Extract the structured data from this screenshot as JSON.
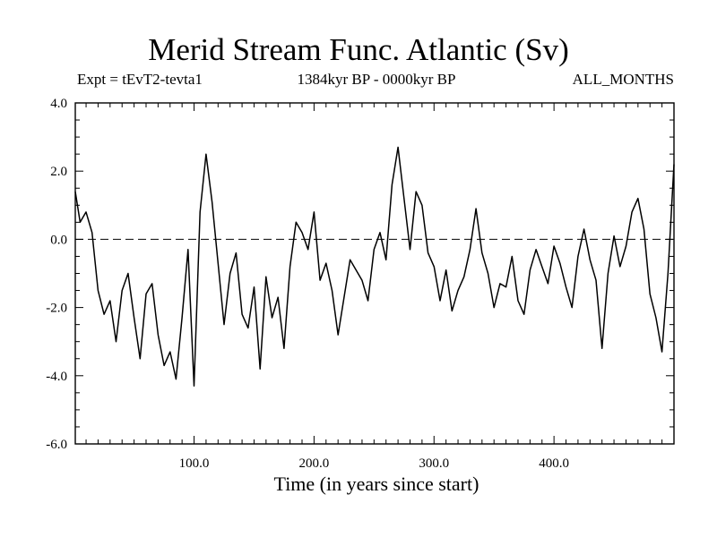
{
  "chart_data": {
    "type": "line",
    "title": "Merid Stream Func. Atlantic (Sv)",
    "subtitle_left": "Expt = tEvT2-tevta1",
    "subtitle_center": "1384kyr BP - 0000kyr BP",
    "subtitle_right": "ALL_MONTHS",
    "xlabel": "Time (in years since start)",
    "ylabel": "",
    "xlim": [
      1,
      500
    ],
    "ylim": [
      -6.0,
      4.0
    ],
    "xticks": [
      100,
      200,
      300,
      400
    ],
    "xtick_labels": [
      "100.0",
      "200.0",
      "300.0",
      "400.0"
    ],
    "yticks": [
      4,
      2,
      0,
      -2,
      -4,
      -6
    ],
    "ytick_labels": [
      "4.0",
      "2.0",
      "0.0",
      "-2.0",
      "-4.0",
      "-6.0"
    ],
    "reference_line": 0.0,
    "series": [
      {
        "name": "Merid Stream Func. Atlantic",
        "x": [
          1,
          5,
          10,
          15,
          20,
          25,
          30,
          35,
          40,
          45,
          50,
          55,
          60,
          65,
          70,
          75,
          80,
          85,
          90,
          95,
          100,
          105,
          110,
          115,
          120,
          125,
          130,
          135,
          140,
          145,
          150,
          155,
          160,
          165,
          170,
          175,
          180,
          185,
          190,
          195,
          200,
          205,
          210,
          215,
          220,
          225,
          230,
          235,
          240,
          245,
          250,
          255,
          260,
          265,
          270,
          275,
          280,
          285,
          290,
          295,
          300,
          305,
          310,
          315,
          320,
          325,
          330,
          335,
          340,
          345,
          350,
          355,
          360,
          365,
          370,
          375,
          380,
          385,
          390,
          395,
          400,
          405,
          410,
          415,
          420,
          425,
          430,
          435,
          440,
          445,
          450,
          455,
          460,
          465,
          470,
          475,
          480,
          485,
          490,
          495,
          500
        ],
        "values": [
          1.4,
          0.5,
          0.8,
          0.2,
          -1.5,
          -2.2,
          -1.8,
          -3.0,
          -1.5,
          -1.0,
          -2.3,
          -3.5,
          -1.6,
          -1.3,
          -2.8,
          -3.7,
          -3.3,
          -4.1,
          -2.3,
          -0.3,
          -4.3,
          0.8,
          2.5,
          1.1,
          -0.7,
          -2.5,
          -1.0,
          -0.4,
          -2.2,
          -2.6,
          -1.4,
          -3.8,
          -1.1,
          -2.3,
          -1.7,
          -3.2,
          -0.8,
          0.5,
          0.2,
          -0.3,
          0.8,
          -1.2,
          -0.7,
          -1.5,
          -2.8,
          -1.7,
          -0.6,
          -0.9,
          -1.2,
          -1.8,
          -0.3,
          0.2,
          -0.6,
          1.6,
          2.7,
          1.2,
          -0.3,
          1.4,
          1.0,
          -0.4,
          -0.8,
          -1.8,
          -0.9,
          -2.1,
          -1.5,
          -1.1,
          -0.3,
          0.9,
          -0.4,
          -1.0,
          -2.0,
          -1.3,
          -1.4,
          -0.5,
          -1.8,
          -2.2,
          -0.9,
          -0.3,
          -0.8,
          -1.3,
          -0.2,
          -0.7,
          -1.4,
          -2.0,
          -0.5,
          0.3,
          -0.6,
          -1.2,
          -3.2,
          -1.0,
          0.1,
          -0.8,
          -0.2,
          0.8,
          1.2,
          0.3,
          -1.6,
          -2.3,
          -3.3,
          -1.0,
          2.2
        ]
      }
    ]
  }
}
